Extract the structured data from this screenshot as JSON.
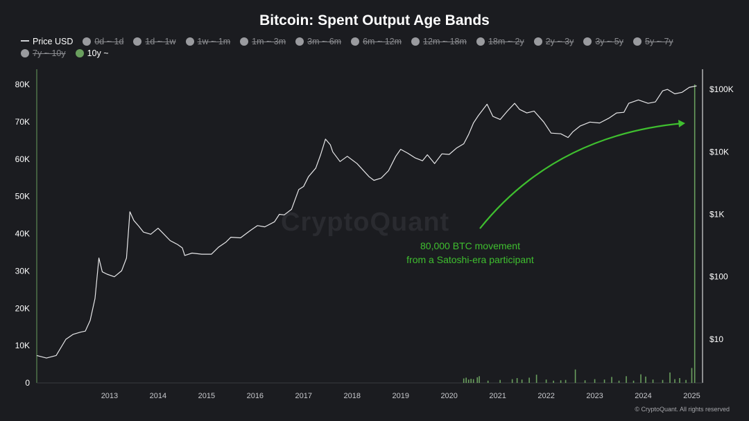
{
  "chart_data": {
    "type": "line",
    "title": "Bitcoin: Spent Output Age Bands",
    "legend": {
      "placement": "top-left",
      "entries": [
        {
          "name": "Price USD",
          "marker": "line",
          "active": true
        },
        {
          "name": "0d ~ 1d",
          "marker": "dot",
          "active": false
        },
        {
          "name": "1d ~ 1w",
          "marker": "dot",
          "active": false
        },
        {
          "name": "1w ~ 1m",
          "marker": "dot",
          "active": false
        },
        {
          "name": "1m ~ 3m",
          "marker": "dot",
          "active": false
        },
        {
          "name": "3m ~ 6m",
          "marker": "dot",
          "active": false
        },
        {
          "name": "6m ~ 12m",
          "marker": "dot",
          "active": false
        },
        {
          "name": "12m ~ 18m",
          "marker": "dot",
          "active": false
        },
        {
          "name": "18m ~ 2y",
          "marker": "dot",
          "active": false
        },
        {
          "name": "2y ~ 3y",
          "marker": "dot",
          "active": false
        },
        {
          "name": "3y ~ 5y",
          "marker": "dot",
          "active": false
        },
        {
          "name": "5y ~ 7y",
          "marker": "dot",
          "active": false
        },
        {
          "name": "7y ~ 10y",
          "marker": "dot",
          "active": false
        },
        {
          "name": "10y ~",
          "marker": "dot",
          "active": true
        }
      ]
    },
    "x_ticks": [
      "2013",
      "2014",
      "2015",
      "2016",
      "2017",
      "2018",
      "2019",
      "2020",
      "2021",
      "2022",
      "2023",
      "2024",
      "2025"
    ],
    "xlim": [
      2012.0,
      2025.65
    ],
    "y_left": {
      "ticks": [
        "0",
        "10K",
        "20K",
        "30K",
        "40K",
        "50K",
        "60K",
        "70K",
        "80K"
      ],
      "ylim": [
        0,
        80000
      ]
    },
    "y_right": {
      "scale": "log",
      "ticks": [
        "$10",
        "$100",
        "$1K",
        "$10K",
        "$100K"
      ],
      "ylim": [
        2,
        120000
      ]
    },
    "grid": false,
    "colors": {
      "price": "#e8e8ea",
      "band_10y": "#6a9f5e",
      "annotation": "#3fbf2f",
      "background": "#1b1c20"
    },
    "series": [
      {
        "name": "Price USD",
        "axis": "right",
        "x": [
          2012.0,
          2012.2,
          2012.4,
          2012.6,
          2012.75,
          2012.9,
          2013.0,
          2013.1,
          2013.2,
          2013.28,
          2013.35,
          2013.45,
          2013.6,
          2013.75,
          2013.85,
          2013.92,
          2014.0,
          2014.1,
          2014.2,
          2014.35,
          2014.5,
          2014.6,
          2014.75,
          2014.9,
          2015.0,
          2015.05,
          2015.2,
          2015.4,
          2015.6,
          2015.75,
          2015.9,
          2016.0,
          2016.2,
          2016.4,
          2016.55,
          2016.7,
          2016.9,
          2017.0,
          2017.1,
          2017.25,
          2017.4,
          2017.5,
          2017.6,
          2017.75,
          2017.85,
          2017.95,
          2018.05,
          2018.1,
          2018.25,
          2018.4,
          2018.6,
          2018.85,
          2018.95,
          2019.1,
          2019.25,
          2019.4,
          2019.5,
          2019.65,
          2019.8,
          2019.95,
          2020.05,
          2020.2,
          2020.35,
          2020.5,
          2020.65,
          2020.8,
          2020.9,
          2021.0,
          2021.1,
          2021.28,
          2021.4,
          2021.55,
          2021.7,
          2021.85,
          2021.95,
          2022.1,
          2022.25,
          2022.45,
          2022.6,
          2022.8,
          2022.95,
          2023.05,
          2023.2,
          2023.4,
          2023.6,
          2023.8,
          2023.95,
          2024.1,
          2024.2,
          2024.4,
          2024.6,
          2024.75,
          2024.9,
          2025.0,
          2025.15,
          2025.3,
          2025.45,
          2025.55,
          2025.6
        ],
        "y": [
          5.5,
          5,
          5.5,
          10,
          12,
          13,
          13.5,
          20,
          45,
          200,
          120,
          110,
          100,
          125,
          200,
          1100,
          800,
          650,
          520,
          480,
          600,
          500,
          380,
          330,
          290,
          220,
          240,
          230,
          230,
          300,
          360,
          430,
          420,
          550,
          660,
          630,
          760,
          1000,
          980,
          1200,
          2500,
          2800,
          4000,
          5500,
          9000,
          16000,
          13000,
          10000,
          7000,
          8500,
          6500,
          4000,
          3500,
          3800,
          5000,
          8500,
          11000,
          9500,
          8000,
          7200,
          9000,
          6500,
          9300,
          9100,
          11500,
          13500,
          19000,
          29000,
          38000,
          58000,
          37000,
          33000,
          45000,
          60000,
          48000,
          42000,
          45000,
          30000,
          20000,
          19500,
          17000,
          21000,
          26000,
          30000,
          29000,
          35000,
          42000,
          43000,
          60000,
          68000,
          60000,
          63000,
          95000,
          100000,
          85000,
          90000,
          108000,
          112000,
          114000
        ]
      },
      {
        "name": "10y ~",
        "axis": "left",
        "x": [
          2020.8,
          2020.85,
          2020.9,
          2020.95,
          2021.0,
          2021.08,
          2021.12,
          2021.3,
          2021.55,
          2021.8,
          2021.9,
          2022.0,
          2022.15,
          2022.3,
          2022.5,
          2022.65,
          2022.8,
          2022.9,
          2023.1,
          2023.3,
          2023.5,
          2023.7,
          2023.85,
          2024.0,
          2024.15,
          2024.3,
          2024.45,
          2024.55,
          2024.7,
          2024.9,
          2025.05,
          2025.15,
          2025.25,
          2025.38,
          2025.5,
          2025.56
        ],
        "y": [
          1200,
          1400,
          900,
          1100,
          1000,
          1500,
          1800,
          600,
          800,
          1000,
          1300,
          900,
          1400,
          2200,
          900,
          600,
          700,
          800,
          3600,
          700,
          1000,
          900,
          1600,
          600,
          1800,
          600,
          2300,
          1700,
          900,
          800,
          2800,
          1000,
          1300,
          800,
          4000,
          80000
        ]
      }
    ],
    "annotation": {
      "text_line1": "80,000 BTC movement",
      "text_line2": "from a Satoshi-era participant"
    },
    "watermark": "CryptoQuant",
    "credit": "© CryptoQuant. All rights reserved"
  }
}
